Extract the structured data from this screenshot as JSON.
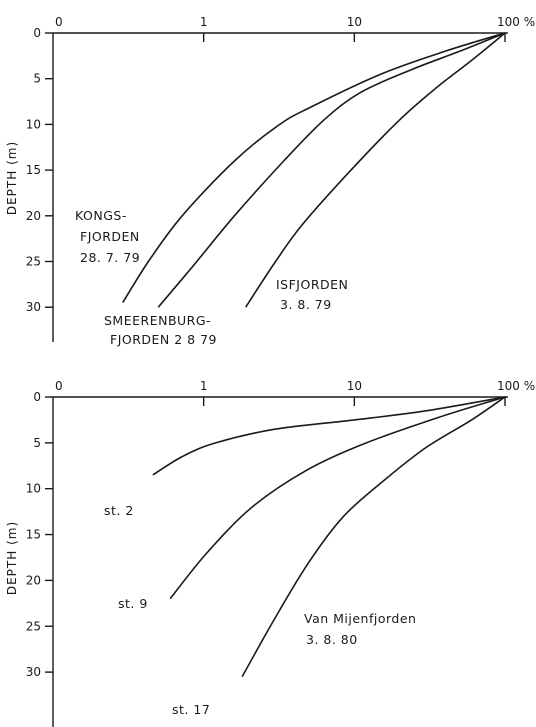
{
  "chart_data": [
    {
      "type": "line",
      "x_scale": "log",
      "xlim": [
        0.1,
        100
      ],
      "ylim": [
        0,
        34
      ],
      "x_ticks": [
        {
          "value": 0.1,
          "label": "0"
        },
        {
          "value": 1,
          "label": "1"
        },
        {
          "value": 10,
          "label": "10"
        },
        {
          "value": 100,
          "label": "100 %"
        }
      ],
      "y_ticks": [
        {
          "value": 0,
          "label": "0"
        },
        {
          "value": 5,
          "label": "5"
        },
        {
          "value": 10,
          "label": "10"
        },
        {
          "value": 15,
          "label": "15"
        },
        {
          "value": 20,
          "label": "20"
        },
        {
          "value": 25,
          "label": "25"
        },
        {
          "value": 30,
          "label": "30"
        }
      ],
      "ylabel": "DEPTH (m)",
      "series": [
        {
          "name": "KONGS-FJORDEN 28. 7. 79",
          "points": [
            [
              100,
              0
            ],
            [
              40,
              2
            ],
            [
              15,
              4.5
            ],
            [
              5.3,
              8
            ],
            [
              3.2,
              10
            ],
            [
              1.6,
              14
            ],
            [
              0.72,
              20
            ],
            [
              0.43,
              25
            ],
            [
              0.29,
              29.5
            ]
          ]
        },
        {
          "name": "SMEERENBURG-FJORDEN 2 8 79",
          "points": [
            [
              100,
              0
            ],
            [
              50,
              2
            ],
            [
              24,
              4
            ],
            [
              11,
              6.5
            ],
            [
              6.3,
              9.5
            ],
            [
              3.4,
              14
            ],
            [
              1.6,
              20
            ],
            [
              0.85,
              25.5
            ],
            [
              0.5,
              30
            ]
          ]
        },
        {
          "name": "ISFJORDEN 3. 8. 79",
          "points": [
            [
              100,
              0
            ],
            [
              60,
              3
            ],
            [
              35,
              6
            ],
            [
              20,
              9.5
            ],
            [
              9.5,
              15
            ],
            [
              4.5,
              21
            ],
            [
              3,
              25
            ],
            [
              1.9,
              30
            ]
          ]
        }
      ],
      "annotations": [
        {
          "lines": [
            "KONGS-",
            "FJORDEN",
            "28. 7. 79"
          ]
        },
        {
          "lines": [
            "SMEERENBURG-",
            "FJORDEN 2 8 79"
          ]
        },
        {
          "lines": [
            "ISFJORDEN",
            "3. 8. 79"
          ]
        }
      ]
    },
    {
      "type": "line",
      "x_scale": "log",
      "xlim": [
        0.1,
        100
      ],
      "ylim": [
        0,
        34
      ],
      "x_ticks": [
        {
          "value": 0.1,
          "label": "0"
        },
        {
          "value": 1,
          "label": "1"
        },
        {
          "value": 10,
          "label": "10"
        },
        {
          "value": 100,
          "label": "100 %"
        }
      ],
      "y_ticks": [
        {
          "value": 0,
          "label": "0"
        },
        {
          "value": 5,
          "label": "5"
        },
        {
          "value": 10,
          "label": "10"
        },
        {
          "value": 15,
          "label": "15"
        },
        {
          "value": 20,
          "label": "20"
        },
        {
          "value": 25,
          "label": "25"
        },
        {
          "value": 30,
          "label": "30"
        }
      ],
      "ylabel": "DEPTH (m)",
      "series": [
        {
          "name": "st. 2",
          "points": [
            [
              100,
              0
            ],
            [
              30,
              1.5
            ],
            [
              10,
              2.5
            ],
            [
              3,
              3.5
            ],
            [
              1.2,
              5
            ],
            [
              0.72,
              6.5
            ],
            [
              0.46,
              8.5
            ]
          ]
        },
        {
          "name": "st. 9",
          "points": [
            [
              100,
              0
            ],
            [
              40,
              2
            ],
            [
              12,
              5
            ],
            [
              4.8,
              8
            ],
            [
              2.1,
              12
            ],
            [
              1.05,
              17
            ],
            [
              0.6,
              22
            ]
          ]
        },
        {
          "name": "st. 17",
          "points": [
            [
              100,
              0
            ],
            [
              60,
              2.5
            ],
            [
              30,
              5.5
            ],
            [
              16,
              9
            ],
            [
              8.5,
              13
            ],
            [
              5,
              18
            ],
            [
              3,
              24
            ],
            [
              1.8,
              30.5
            ]
          ]
        }
      ],
      "annotations": [
        {
          "lines": [
            "st. 2"
          ]
        },
        {
          "lines": [
            "st. 9"
          ]
        },
        {
          "lines": [
            "st. 17"
          ]
        },
        {
          "lines": [
            "Van Mijenfjorden",
            "3. 8. 80"
          ]
        }
      ]
    }
  ]
}
